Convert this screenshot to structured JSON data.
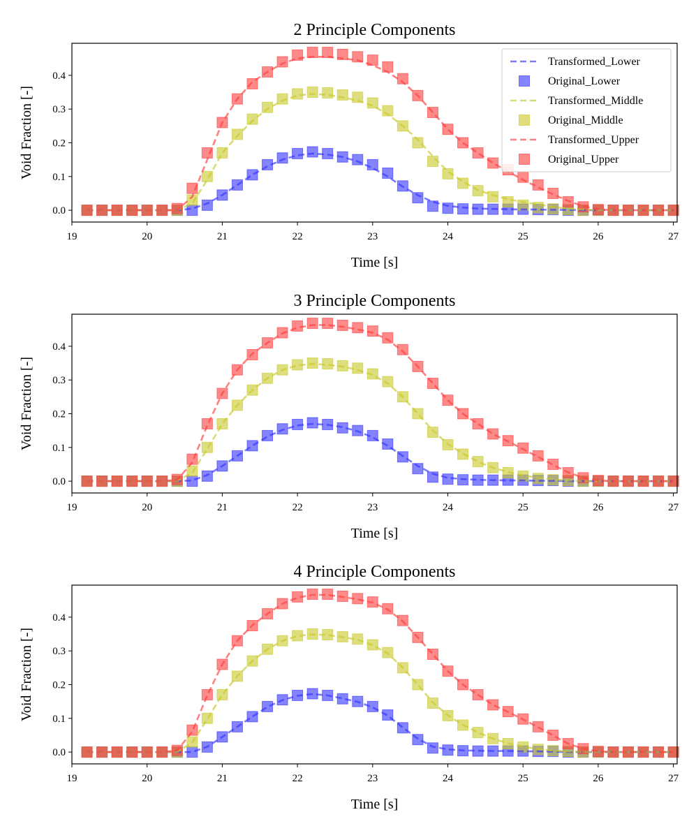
{
  "colors": {
    "Lower": "#3232ff",
    "Middle": "#c8c828",
    "Upper": "#ff3c3c"
  },
  "chart_data": [
    {
      "type": "line",
      "title": "2 Principle Components",
      "xlabel": "Time [s]",
      "ylabel": "Void Fraction [-]",
      "xlim": [
        19,
        27.05
      ],
      "ylim": [
        -0.035,
        0.495
      ],
      "xticks": [
        19,
        20,
        21,
        22,
        23,
        24,
        25,
        26,
        27
      ],
      "yticks": [
        0.0,
        0.1,
        0.2,
        0.3,
        0.4
      ],
      "legend": {
        "position": "top-right",
        "entries": [
          "Transformed_Lower",
          "Original_Lower",
          "Transformed_Middle",
          "Original_Middle",
          "Transformed_Upper",
          "Original_Upper"
        ]
      },
      "x": [
        19.2,
        19.4,
        19.6,
        19.8,
        20.0,
        20.2,
        20.4,
        20.6,
        20.8,
        21.0,
        21.2,
        21.4,
        21.6,
        21.8,
        22.0,
        22.2,
        22.4,
        22.6,
        22.8,
        23.0,
        23.2,
        23.4,
        23.6,
        23.8,
        24.0,
        24.2,
        24.4,
        24.6,
        24.8,
        25.0,
        25.2,
        25.4,
        25.6,
        25.8,
        26.0,
        26.2,
        26.4,
        26.6,
        26.8,
        27.0
      ],
      "series": [
        {
          "name": "Transformed_Lower",
          "kind": "line",
          "color_key": "Lower",
          "values": [
            0,
            0,
            0,
            0,
            0,
            0,
            0,
            0.005,
            0.02,
            0.045,
            0.075,
            0.105,
            0.13,
            0.15,
            0.163,
            0.168,
            0.165,
            0.158,
            0.145,
            0.125,
            0.1,
            0.07,
            0.045,
            0.025,
            0.013,
            0.008,
            0.005,
            0.004,
            0.003,
            0.002,
            0.002,
            0.001,
            0.001,
            0,
            0,
            0,
            0,
            0,
            0,
            0
          ]
        },
        {
          "name": "Original_Lower",
          "kind": "marker",
          "color_key": "Lower",
          "values": [
            0,
            0,
            0,
            0,
            0,
            0,
            0,
            0,
            0.015,
            0.045,
            0.075,
            0.105,
            0.135,
            0.155,
            0.168,
            0.173,
            0.168,
            0.158,
            0.15,
            0.135,
            0.11,
            0.072,
            0.037,
            0.012,
            0.006,
            0.004,
            0.003,
            0.003,
            0.003,
            0.003,
            0.002,
            0.002,
            0,
            0,
            0,
            0,
            0,
            0,
            0,
            0
          ]
        },
        {
          "name": "Transformed_Middle",
          "kind": "line",
          "color_key": "Middle",
          "values": [
            0,
            0,
            0,
            0,
            0,
            0,
            0,
            0.02,
            0.09,
            0.17,
            0.22,
            0.265,
            0.3,
            0.325,
            0.34,
            0.345,
            0.342,
            0.335,
            0.325,
            0.31,
            0.285,
            0.25,
            0.21,
            0.16,
            0.115,
            0.085,
            0.06,
            0.045,
            0.033,
            0.024,
            0.017,
            0.01,
            0.005,
            0.002,
            0,
            0,
            0,
            0,
            0,
            0
          ]
        },
        {
          "name": "Original_Middle",
          "kind": "marker",
          "color_key": "Middle",
          "values": [
            0,
            0,
            0,
            0,
            0,
            0,
            0,
            0.03,
            0.1,
            0.17,
            0.225,
            0.27,
            0.305,
            0.33,
            0.345,
            0.35,
            0.348,
            0.342,
            0.335,
            0.318,
            0.295,
            0.25,
            0.2,
            0.145,
            0.108,
            0.08,
            0.058,
            0.04,
            0.025,
            0.015,
            0.008,
            0.004,
            0.002,
            0,
            0,
            0,
            0,
            0,
            0,
            0
          ]
        },
        {
          "name": "Transformed_Upper",
          "kind": "line",
          "color_key": "Upper",
          "values": [
            0,
            0,
            0,
            0,
            0,
            0,
            0,
            0.04,
            0.15,
            0.26,
            0.33,
            0.38,
            0.41,
            0.435,
            0.45,
            0.455,
            0.455,
            0.45,
            0.445,
            0.43,
            0.41,
            0.38,
            0.34,
            0.29,
            0.24,
            0.2,
            0.17,
            0.14,
            0.115,
            0.09,
            0.068,
            0.047,
            0.028,
            0.012,
            0.003,
            0,
            0,
            0,
            0,
            0
          ]
        },
        {
          "name": "Original_Upper",
          "kind": "marker",
          "color_key": "Upper",
          "values": [
            0,
            0,
            0,
            0,
            0,
            0,
            0.005,
            0.065,
            0.17,
            0.26,
            0.33,
            0.375,
            0.41,
            0.44,
            0.46,
            0.468,
            0.468,
            0.462,
            0.455,
            0.445,
            0.425,
            0.39,
            0.34,
            0.29,
            0.24,
            0.2,
            0.17,
            0.14,
            0.12,
            0.098,
            0.075,
            0.05,
            0.025,
            0.01,
            0.002,
            0,
            0,
            0,
            0,
            0
          ]
        }
      ]
    },
    {
      "type": "line",
      "title": "3 Principle Components",
      "xlabel": "Time [s]",
      "ylabel": "Void Fraction [-]",
      "xlim": [
        19,
        27.05
      ],
      "ylim": [
        -0.035,
        0.495
      ],
      "xticks": [
        19,
        20,
        21,
        22,
        23,
        24,
        25,
        26,
        27
      ],
      "yticks": [
        0.0,
        0.1,
        0.2,
        0.3,
        0.4
      ],
      "x": [
        19.2,
        19.4,
        19.6,
        19.8,
        20.0,
        20.2,
        20.4,
        20.6,
        20.8,
        21.0,
        21.2,
        21.4,
        21.6,
        21.8,
        22.0,
        22.2,
        22.4,
        22.6,
        22.8,
        23.0,
        23.2,
        23.4,
        23.6,
        23.8,
        24.0,
        24.2,
        24.4,
        24.6,
        24.8,
        25.0,
        25.2,
        25.4,
        25.6,
        25.8,
        26.0,
        26.2,
        26.4,
        26.6,
        26.8,
        27.0
      ],
      "series": [
        {
          "name": "Transformed_Lower",
          "kind": "line",
          "color_key": "Lower",
          "values": [
            0,
            0,
            0,
            0,
            0,
            0,
            0,
            0.002,
            0.018,
            0.045,
            0.075,
            0.105,
            0.132,
            0.152,
            0.165,
            0.17,
            0.167,
            0.16,
            0.148,
            0.13,
            0.105,
            0.075,
            0.045,
            0.022,
            0.01,
            0.006,
            0.004,
            0.003,
            0.002,
            0.002,
            0.001,
            0.001,
            0,
            0,
            0,
            0,
            0,
            0,
            0,
            0
          ]
        },
        {
          "name": "Original_Lower",
          "kind": "marker",
          "color_key": "Lower",
          "values": [
            0,
            0,
            0,
            0,
            0,
            0,
            0,
            0,
            0.015,
            0.045,
            0.075,
            0.105,
            0.135,
            0.155,
            0.168,
            0.173,
            0.168,
            0.158,
            0.15,
            0.135,
            0.11,
            0.072,
            0.037,
            0.012,
            0.006,
            0.004,
            0.003,
            0.003,
            0.003,
            0.003,
            0.002,
            0.002,
            0,
            0,
            0,
            0,
            0,
            0,
            0,
            0
          ]
        },
        {
          "name": "Transformed_Middle",
          "kind": "line",
          "color_key": "Middle",
          "values": [
            0,
            0,
            0,
            0,
            0,
            0,
            0,
            0.025,
            0.095,
            0.17,
            0.225,
            0.27,
            0.305,
            0.33,
            0.343,
            0.348,
            0.345,
            0.34,
            0.33,
            0.315,
            0.29,
            0.25,
            0.2,
            0.15,
            0.11,
            0.082,
            0.058,
            0.04,
            0.027,
            0.017,
            0.01,
            0.005,
            0.002,
            0,
            0,
            0,
            0,
            0,
            0,
            0
          ]
        },
        {
          "name": "Original_Middle",
          "kind": "marker",
          "color_key": "Middle",
          "values": [
            0,
            0,
            0,
            0,
            0,
            0,
            0,
            0.03,
            0.1,
            0.17,
            0.225,
            0.27,
            0.305,
            0.33,
            0.345,
            0.35,
            0.348,
            0.342,
            0.335,
            0.318,
            0.295,
            0.25,
            0.2,
            0.145,
            0.108,
            0.08,
            0.058,
            0.04,
            0.025,
            0.015,
            0.008,
            0.004,
            0.002,
            0,
            0,
            0,
            0,
            0,
            0,
            0
          ]
        },
        {
          "name": "Transformed_Upper",
          "kind": "line",
          "color_key": "Upper",
          "values": [
            0,
            0,
            0,
            0,
            0,
            0,
            0.004,
            0.055,
            0.165,
            0.26,
            0.33,
            0.378,
            0.41,
            0.438,
            0.455,
            0.463,
            0.463,
            0.458,
            0.45,
            0.44,
            0.42,
            0.385,
            0.34,
            0.29,
            0.24,
            0.2,
            0.17,
            0.14,
            0.118,
            0.095,
            0.072,
            0.048,
            0.026,
            0.01,
            0.002,
            0,
            0,
            0,
            0,
            0
          ]
        },
        {
          "name": "Original_Upper",
          "kind": "marker",
          "color_key": "Upper",
          "values": [
            0,
            0,
            0,
            0,
            0,
            0,
            0.005,
            0.065,
            0.17,
            0.26,
            0.33,
            0.375,
            0.41,
            0.44,
            0.46,
            0.468,
            0.468,
            0.462,
            0.455,
            0.445,
            0.425,
            0.39,
            0.34,
            0.29,
            0.24,
            0.2,
            0.17,
            0.14,
            0.12,
            0.098,
            0.075,
            0.05,
            0.025,
            0.01,
            0.002,
            0,
            0,
            0,
            0,
            0
          ]
        }
      ]
    },
    {
      "type": "line",
      "title": "4 Principle Components",
      "xlabel": "Time [s]",
      "ylabel": "Void Fraction [-]",
      "xlim": [
        19,
        27.05
      ],
      "ylim": [
        -0.035,
        0.495
      ],
      "xticks": [
        19,
        20,
        21,
        22,
        23,
        24,
        25,
        26,
        27
      ],
      "yticks": [
        0.0,
        0.1,
        0.2,
        0.3,
        0.4
      ],
      "x": [
        19.2,
        19.4,
        19.6,
        19.8,
        20.0,
        20.2,
        20.4,
        20.6,
        20.8,
        21.0,
        21.2,
        21.4,
        21.6,
        21.8,
        22.0,
        22.2,
        22.4,
        22.6,
        22.8,
        23.0,
        23.2,
        23.4,
        23.6,
        23.8,
        24.0,
        24.2,
        24.4,
        24.6,
        24.8,
        25.0,
        25.2,
        25.4,
        25.6,
        25.8,
        26.0,
        26.2,
        26.4,
        26.6,
        26.8,
        27.0
      ],
      "series": [
        {
          "name": "Transformed_Lower",
          "kind": "line",
          "color_key": "Lower",
          "values": [
            0,
            0,
            0,
            0,
            0,
            0,
            0,
            0,
            0.016,
            0.045,
            0.075,
            0.105,
            0.134,
            0.154,
            0.167,
            0.172,
            0.168,
            0.159,
            0.149,
            0.133,
            0.108,
            0.073,
            0.04,
            0.016,
            0.008,
            0.005,
            0.004,
            0.003,
            0.003,
            0.002,
            0.002,
            0.001,
            0,
            0,
            0,
            0,
            0,
            0,
            0,
            0
          ]
        },
        {
          "name": "Original_Lower",
          "kind": "marker",
          "color_key": "Lower",
          "values": [
            0,
            0,
            0,
            0,
            0,
            0,
            0,
            0,
            0.015,
            0.045,
            0.075,
            0.105,
            0.135,
            0.155,
            0.168,
            0.173,
            0.168,
            0.158,
            0.15,
            0.135,
            0.11,
            0.072,
            0.037,
            0.012,
            0.006,
            0.004,
            0.003,
            0.003,
            0.003,
            0.003,
            0.002,
            0.002,
            0,
            0,
            0,
            0,
            0,
            0,
            0,
            0
          ]
        },
        {
          "name": "Transformed_Middle",
          "kind": "line",
          "color_key": "Middle",
          "values": [
            0,
            0,
            0,
            0,
            0,
            0,
            0,
            0.028,
            0.098,
            0.17,
            0.225,
            0.27,
            0.305,
            0.33,
            0.344,
            0.349,
            0.347,
            0.341,
            0.333,
            0.317,
            0.293,
            0.25,
            0.2,
            0.147,
            0.109,
            0.081,
            0.058,
            0.04,
            0.026,
            0.016,
            0.009,
            0.004,
            0.002,
            0,
            0,
            0,
            0,
            0,
            0,
            0
          ]
        },
        {
          "name": "Original_Middle",
          "kind": "marker",
          "color_key": "Middle",
          "values": [
            0,
            0,
            0,
            0,
            0,
            0,
            0,
            0.03,
            0.1,
            0.17,
            0.225,
            0.27,
            0.305,
            0.33,
            0.345,
            0.35,
            0.348,
            0.342,
            0.335,
            0.318,
            0.295,
            0.25,
            0.2,
            0.145,
            0.108,
            0.08,
            0.058,
            0.04,
            0.025,
            0.015,
            0.008,
            0.004,
            0.002,
            0,
            0,
            0,
            0,
            0,
            0,
            0
          ]
        },
        {
          "name": "Transformed_Upper",
          "kind": "line",
          "color_key": "Upper",
          "values": [
            0,
            0,
            0,
            0,
            0,
            0,
            0.005,
            0.06,
            0.168,
            0.26,
            0.33,
            0.376,
            0.41,
            0.44,
            0.458,
            0.466,
            0.466,
            0.46,
            0.453,
            0.443,
            0.423,
            0.388,
            0.34,
            0.29,
            0.24,
            0.2,
            0.17,
            0.14,
            0.119,
            0.097,
            0.074,
            0.049,
            0.025,
            0.01,
            0.002,
            0,
            0,
            0,
            0,
            0
          ]
        },
        {
          "name": "Original_Upper",
          "kind": "marker",
          "color_key": "Upper",
          "values": [
            0,
            0,
            0,
            0,
            0,
            0,
            0.005,
            0.065,
            0.17,
            0.26,
            0.33,
            0.375,
            0.41,
            0.44,
            0.46,
            0.468,
            0.468,
            0.462,
            0.455,
            0.445,
            0.425,
            0.39,
            0.34,
            0.29,
            0.24,
            0.2,
            0.17,
            0.14,
            0.12,
            0.098,
            0.075,
            0.05,
            0.025,
            0.01,
            0.002,
            0,
            0,
            0,
            0,
            0
          ]
        }
      ]
    }
  ]
}
